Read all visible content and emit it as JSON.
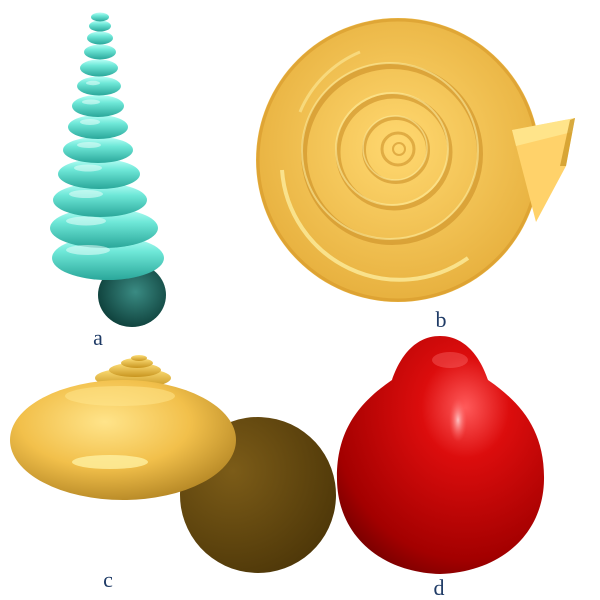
{
  "figure": {
    "panels": [
      {
        "label": "a",
        "shape": "turreted-shell",
        "color": "#5ee0d0"
      },
      {
        "label": "b",
        "shape": "planispiral-shell",
        "color": "#ffce5c"
      },
      {
        "label": "c",
        "shape": "trochoid-shell",
        "color": "#f2c04b"
      },
      {
        "label": "d",
        "shape": "ovoid-shell",
        "color": "#d40000"
      }
    ]
  }
}
